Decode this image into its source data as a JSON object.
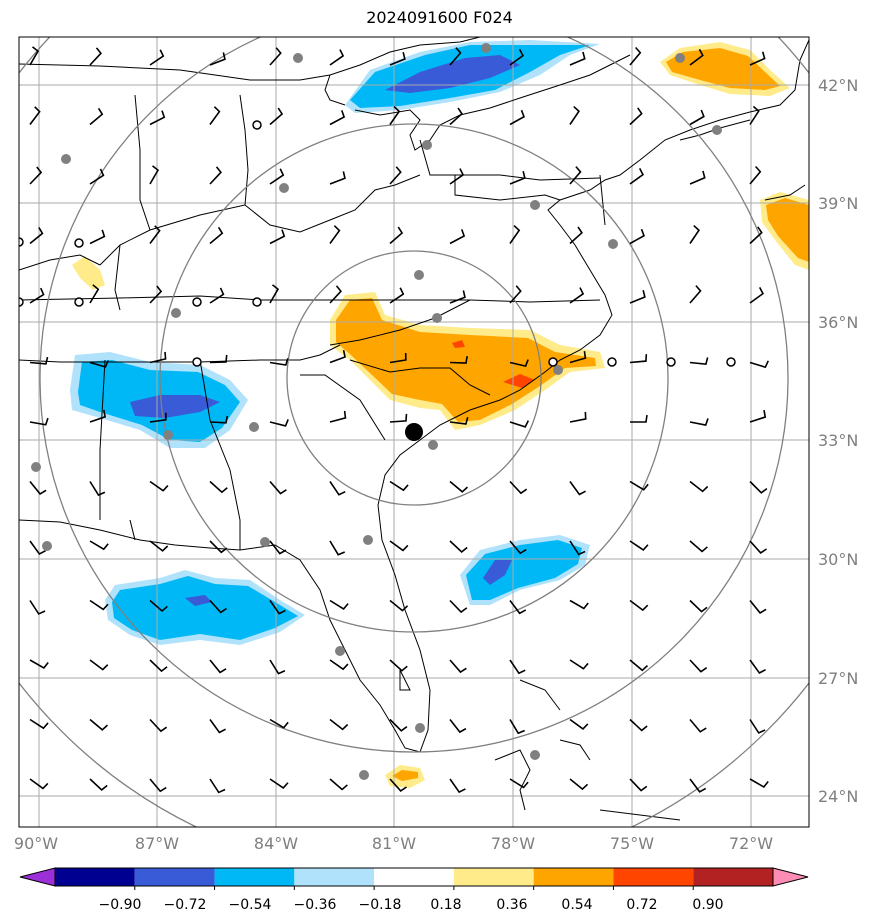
{
  "title": "2024091600 F024",
  "lat_labels": [
    "42°N",
    "39°N",
    "36°N",
    "33°N",
    "30°N",
    "27°N",
    "24°N"
  ],
  "lon_labels": [
    "90°W",
    "87°W",
    "84°W",
    "81°W",
    "78°W",
    "75°W",
    "72°W"
  ],
  "colorbar": {
    "ticks": [
      "−0.90",
      "−0.72",
      "−0.54",
      "−0.36",
      "−0.18",
      "0.18",
      "0.36",
      "0.54",
      "0.72",
      "0.90"
    ],
    "colors": [
      "#9b30d9",
      "#000090",
      "#3a5bd8",
      "#00b8f5",
      "#b0e2fb",
      "#ffffff",
      "#ffeb8a",
      "#ffa500",
      "#ff4500",
      "#b22222",
      "#ff8cb4"
    ]
  },
  "colors": {
    "neg_light": "#b0e2fb",
    "neg_mid": "#00b8f5",
    "neg_dark": "#3a5bd8",
    "neg_deep": "#6a3fd4",
    "pos_light": "#ffeb8a",
    "pos_mid": "#ffa500",
    "pos_dark": "#ff4500",
    "grid": "#aaaaaa",
    "ring": "#808080",
    "station": "#808080"
  }
}
